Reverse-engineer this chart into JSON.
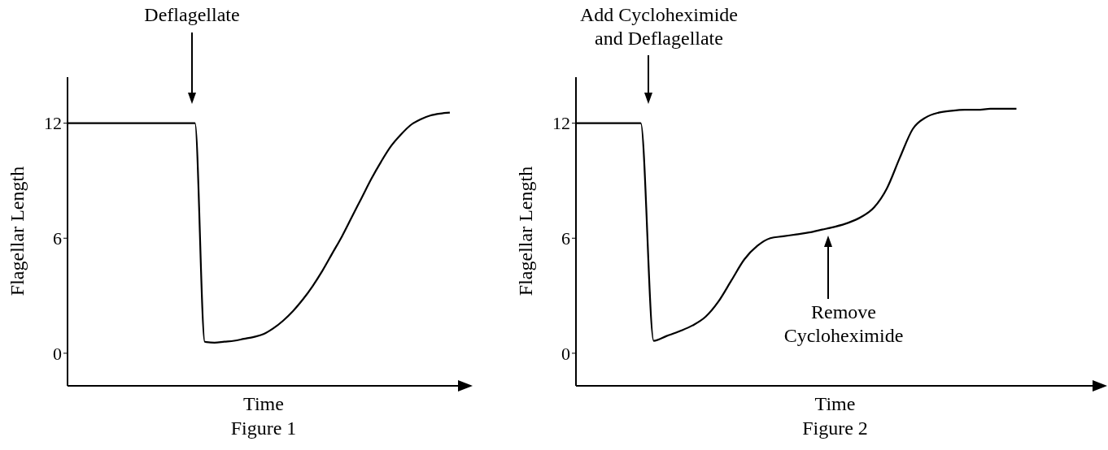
{
  "chart_data": [
    {
      "type": "line",
      "title": "Figure 1",
      "xlabel": "Time",
      "ylabel": "Flagellar Length",
      "categories": [
        null,
        null,
        null,
        null,
        null,
        null,
        null,
        null,
        null,
        null,
        null,
        null,
        null,
        null,
        null,
        null,
        null,
        null,
        null,
        null,
        null,
        null,
        null,
        null,
        null,
        null,
        null,
        null,
        null,
        null,
        null,
        null,
        null,
        null,
        null,
        null,
        null,
        null,
        null,
        null,
        null
      ],
      "series": [
        {
          "color": "#000000",
          "values": [
            12,
            12,
            12,
            12,
            12,
            12,
            12,
            12,
            12,
            12,
            12,
            12,
            12,
            12,
            0.6,
            0.55,
            0.6,
            0.65,
            0.75,
            0.85,
            1.0,
            1.3,
            1.7,
            2.2,
            2.8,
            3.5,
            4.3,
            5.2,
            6.1,
            7.1,
            8.1,
            9.1,
            10.0,
            10.8,
            11.4,
            11.9,
            12.2,
            12.4,
            12.5,
            12.55,
            null
          ]
        }
      ],
      "ylim": [
        -1.7,
        14.4
      ],
      "yticks": [
        0,
        6,
        12
      ],
      "tick_labels": "y",
      "grid": false,
      "legend": false,
      "marker": "none",
      "line_style": "solid",
      "annotations": [
        "Deflagellate"
      ]
    },
    {
      "type": "line",
      "title": "Figure 2",
      "xlabel": "Time",
      "ylabel": "Flagellar Length",
      "categories": [
        null,
        null,
        null,
        null,
        null,
        null,
        null,
        null,
        null,
        null,
        null,
        null,
        null,
        null,
        null,
        null,
        null,
        null,
        null,
        null,
        null,
        null,
        null,
        null,
        null,
        null,
        null,
        null,
        null,
        null,
        null,
        null,
        null,
        null,
        null,
        null,
        null,
        null,
        null,
        null,
        null
      ],
      "series": [
        {
          "color": "#000000",
          "values": [
            12,
            12,
            12,
            12,
            12,
            12,
            0.65,
            0.9,
            1.15,
            1.45,
            1.9,
            2.7,
            3.8,
            4.9,
            5.6,
            6.0,
            6.1,
            6.2,
            6.3,
            6.45,
            6.6,
            6.8,
            7.1,
            7.6,
            8.6,
            10.2,
            11.7,
            12.3,
            12.55,
            12.65,
            12.7,
            12.7,
            12.75,
            12.75,
            12.75,
            null,
            null,
            null,
            null,
            null,
            null
          ]
        }
      ],
      "ylim": [
        -1.7,
        14.4
      ],
      "yticks": [
        0,
        6,
        12
      ],
      "tick_labels": "y",
      "grid": false,
      "legend": false,
      "marker": "none",
      "line_style": "solid",
      "annotations": [
        "Add Cycloheximide and Deflagellate",
        "Remove Cycloheximide"
      ]
    }
  ]
}
